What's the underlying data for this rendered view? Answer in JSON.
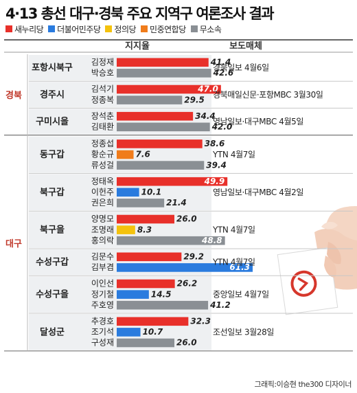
{
  "title": "4·13 총선 대구·경북 주요 지역구 여론조사 결과",
  "footer": "그래픽:이승현 the300 디자이너",
  "legend": [
    {
      "name": "새누리당",
      "color": "#e8302a"
    },
    {
      "name": "더불어민주당",
      "color": "#2a7bde"
    },
    {
      "name": "정의당",
      "color": "#f4c20d"
    },
    {
      "name": "민중연합당",
      "color": "#f07c1b"
    },
    {
      "name": "무소속",
      "color": "#8a8f94"
    }
  ],
  "chart_data": {
    "type": "bar",
    "title": "4·13 총선 대구·경북 주요 지역구 여론조사 결과",
    "xlabel": "지지율",
    "source_label": "보도매체",
    "xlim": [
      0,
      65
    ],
    "regions": [
      {
        "name": "경북",
        "districts": [
          {
            "name": "포항시북구",
            "source": "경북일보 4월6일",
            "candidates": [
              {
                "name": "김정재",
                "party": "새누리당",
                "value": 41.4
              },
              {
                "name": "박승호",
                "party": "무소속",
                "value": 42.6
              }
            ]
          },
          {
            "name": "경주시",
            "source": "경북매일신문·포항MBC 3월30일",
            "candidates": [
              {
                "name": "김석기",
                "party": "새누리당",
                "value": 47.0
              },
              {
                "name": "정종복",
                "party": "무소속",
                "value": 29.5
              }
            ]
          },
          {
            "name": "구미시을",
            "source": "영남일보·대구MBC 4월5일",
            "candidates": [
              {
                "name": "장석춘",
                "party": "새누리당",
                "value": 34.4
              },
              {
                "name": "김태환",
                "party": "무소속",
                "value": 42.0
              }
            ]
          }
        ]
      },
      {
        "name": "대구",
        "districts": [
          {
            "name": "동구갑",
            "source": "YTN 4월7일",
            "candidates": [
              {
                "name": "정종섭",
                "party": "새누리당",
                "value": 38.6
              },
              {
                "name": "황순규",
                "party": "민중연합당",
                "value": 7.6
              },
              {
                "name": "류성걸",
                "party": "무소속",
                "value": 39.4
              }
            ]
          },
          {
            "name": "북구갑",
            "source": "영남일보·대구MBC 4월2일",
            "candidates": [
              {
                "name": "정태옥",
                "party": "새누리당",
                "value": 49.9
              },
              {
                "name": "이헌주",
                "party": "더불어민주당",
                "value": 10.1
              },
              {
                "name": "권은희",
                "party": "무소속",
                "value": 21.4
              }
            ]
          },
          {
            "name": "북구을",
            "source": "YTN 4월7일",
            "candidates": [
              {
                "name": "양명모",
                "party": "새누리당",
                "value": 26.0
              },
              {
                "name": "조명래",
                "party": "정의당",
                "value": 8.3
              },
              {
                "name": "홍의락",
                "party": "무소속",
                "value": 48.8
              }
            ]
          },
          {
            "name": "수성구갑",
            "source": "YTN 4월7일",
            "candidates": [
              {
                "name": "김문수",
                "party": "새누리당",
                "value": 29.2
              },
              {
                "name": "김부겸",
                "party": "더불어민주당",
                "value": 61.3
              }
            ]
          },
          {
            "name": "수성구을",
            "source": "중앙일보 4월7일",
            "candidates": [
              {
                "name": "이인선",
                "party": "새누리당",
                "value": 26.2
              },
              {
                "name": "정기철",
                "party": "더불어민주당",
                "value": 14.5
              },
              {
                "name": "주호영",
                "party": "무소속",
                "value": 41.2
              }
            ]
          },
          {
            "name": "달성군",
            "source": "조선일보 3월28일",
            "candidates": [
              {
                "name": "추경호",
                "party": "새누리당",
                "value": 32.3
              },
              {
                "name": "조기석",
                "party": "더불어민주당",
                "value": 10.7
              },
              {
                "name": "구성재",
                "party": "무소속",
                "value": 26.0
              }
            ]
          }
        ]
      }
    ]
  }
}
